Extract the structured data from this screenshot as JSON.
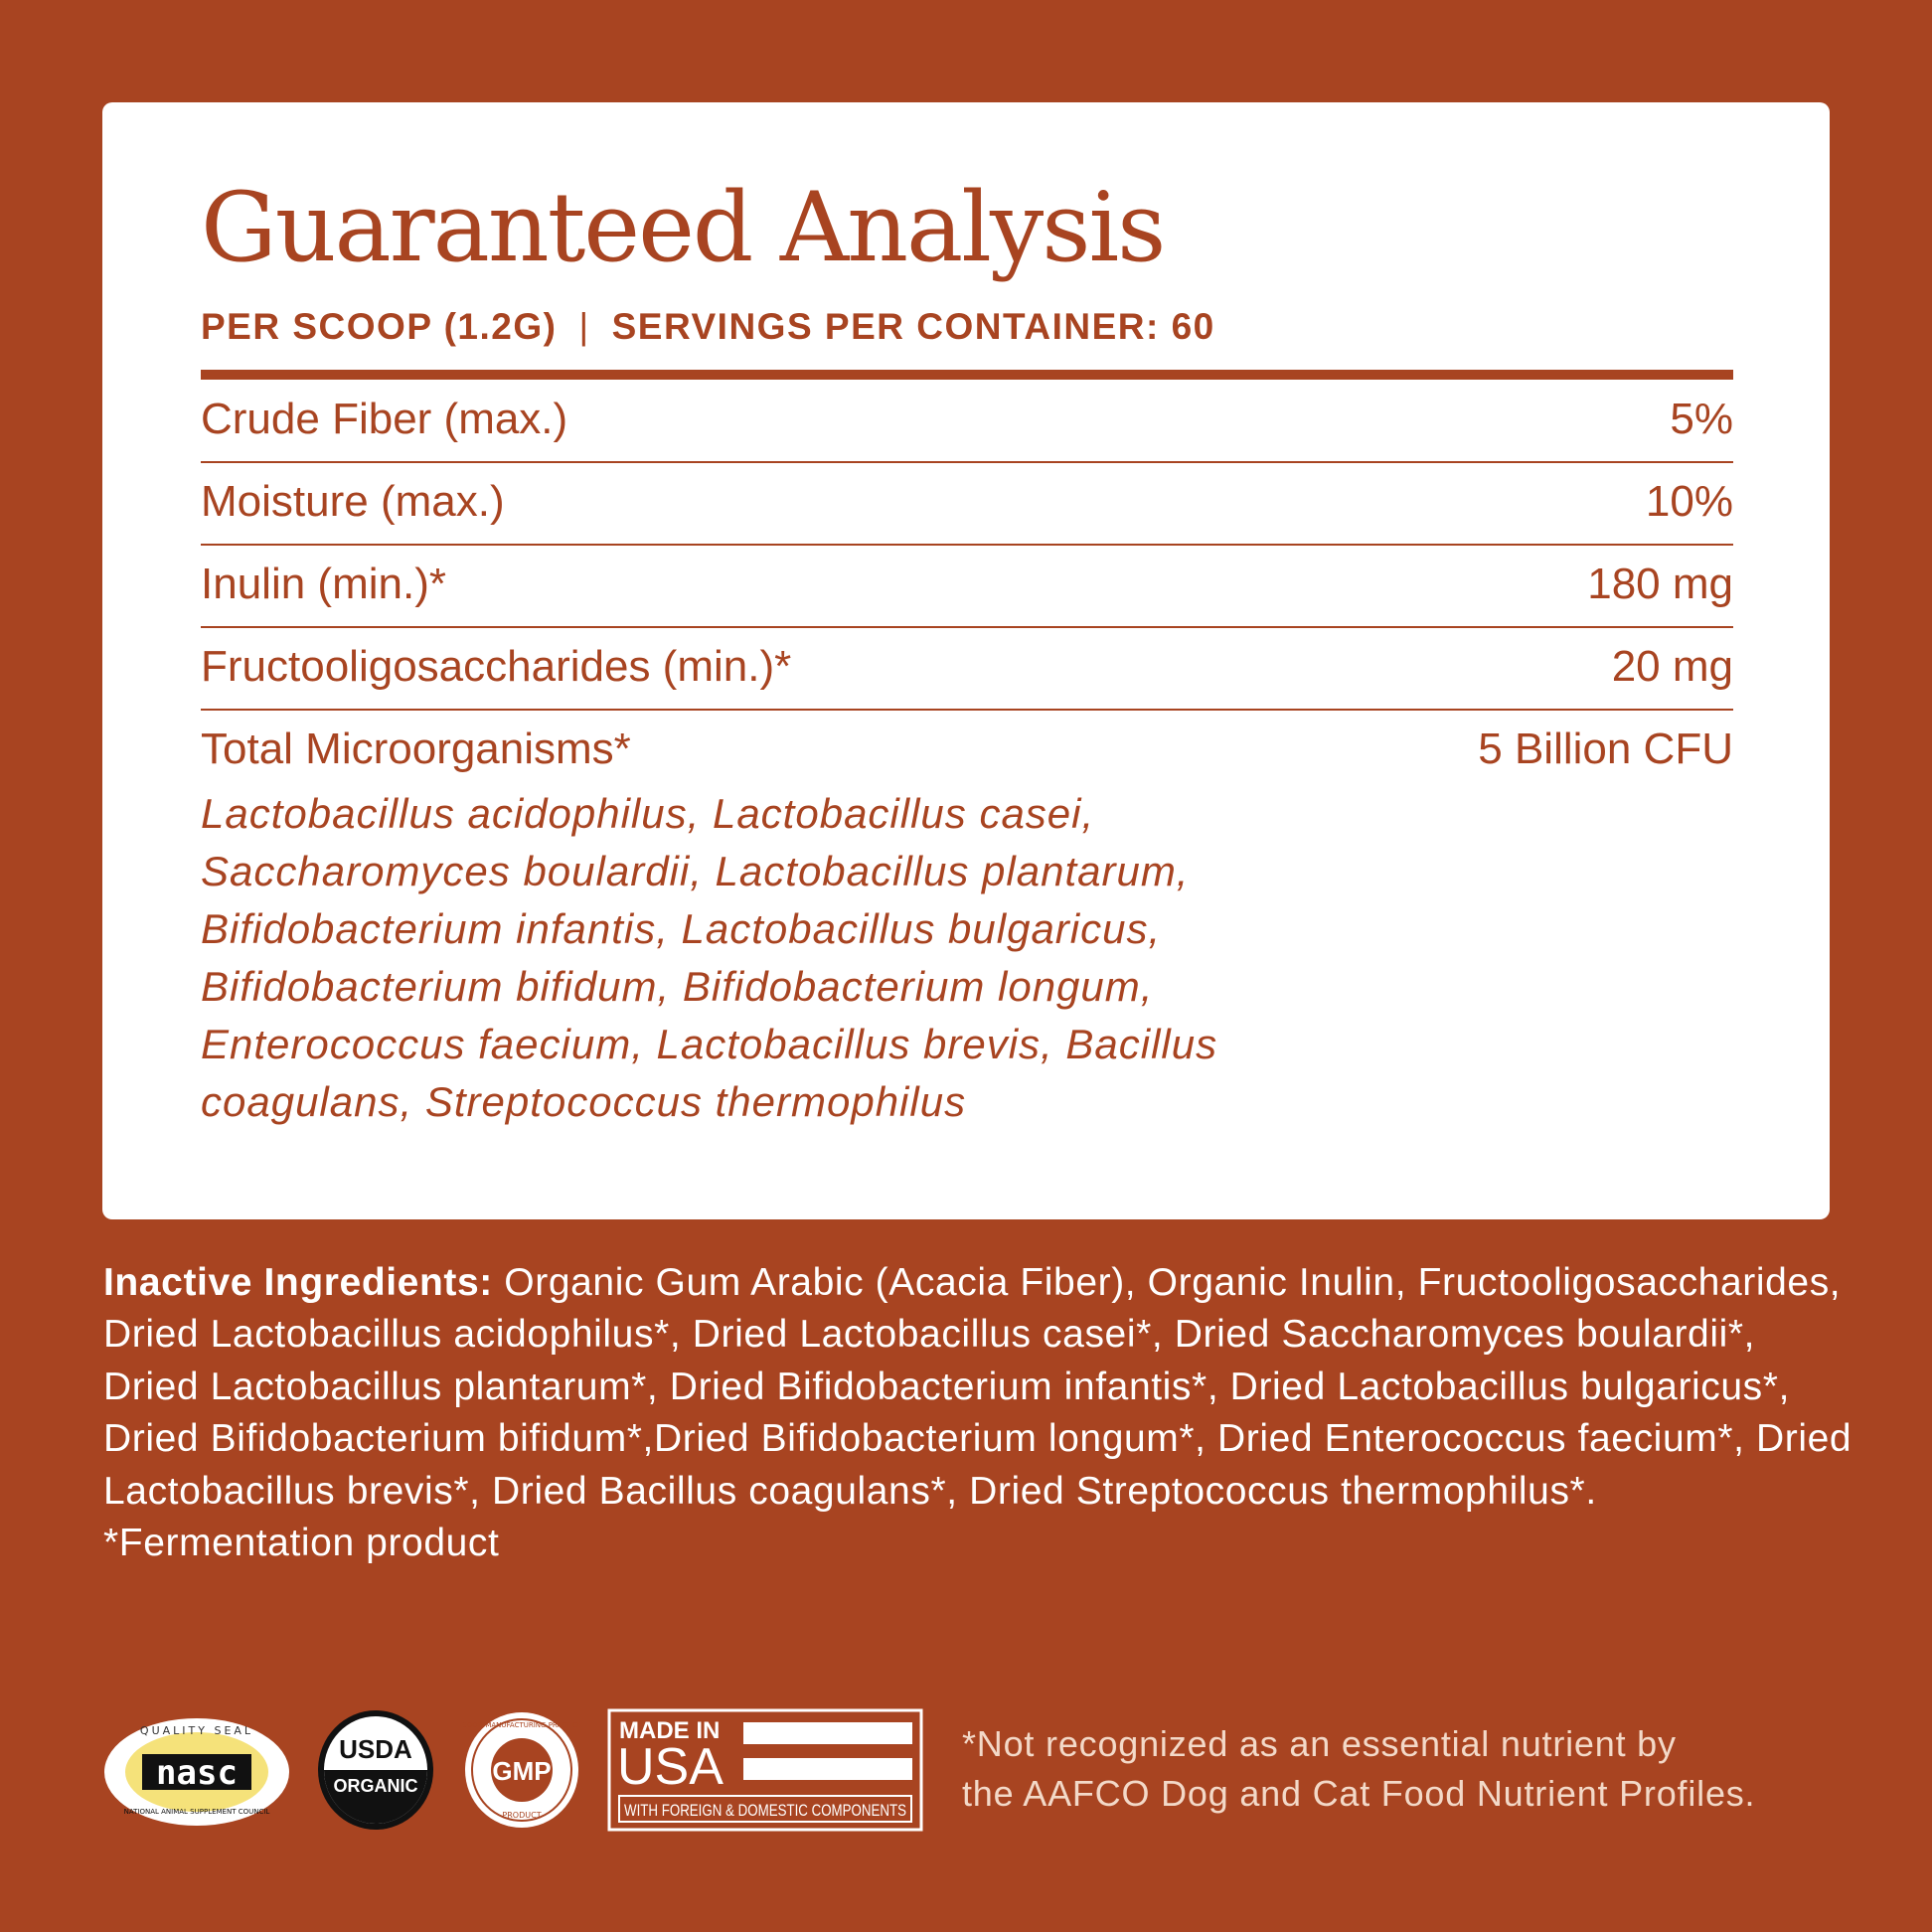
{
  "header": {
    "title": "Guaranteed Analysis",
    "per_scoop": "PER SCOOP (1.2G)",
    "separator": "|",
    "servings": "SERVINGS PER CONTAINER: 60"
  },
  "rows": [
    {
      "label": "Crude Fiber (max.)",
      "value": "5%"
    },
    {
      "label": "Moisture (max.)",
      "value": "10%"
    },
    {
      "label": "Inulin (min.)*",
      "value": "180 mg"
    },
    {
      "label": "Fructooligosaccharides (min.)*",
      "value": "20 mg"
    },
    {
      "label": "Total Microorganisms*",
      "value": "5 Billion CFU"
    }
  ],
  "species": "Lactobacillus acidophilus, Lactobacillus casei, Saccharomyces boulardii, Lactobacillus plantarum, Bifidobacterium infantis, Lactobacillus bulgaricus, Bifidobacterium bifidum, Bifidobacterium longum, Enterococcus faecium, Lactobacillus brevis, Bacillus coagulans, Streptococcus thermophilus",
  "inactive": {
    "label": "Inactive Ingredients:",
    "text": " Organic Gum Arabic (Acacia Fiber), Organic Inulin, Fructooligosaccharides, Dried Lactobacillus acidophilus*, Dried Lactobacillus casei*, Dried Saccharomyces boulardii*, Dried Lactobacillus plantarum*, Dried Bifidobacterium infantis*, Dried Lactobacillus bulgaricus*, Dried Bifidobacterium bifidum*,Dried Bifidobacterium longum*, Dried Enterococcus faecium*, Dried Lactobacillus brevis*, Dried Bacillus coagulans*, Dried Streptococcus thermophilus*.",
    "footnote": "*Fermentation product"
  },
  "logos": {
    "nasc": {
      "top": "QUALITY SEAL",
      "main": "nasc",
      "bottom": "NATIONAL ANIMAL SUPPLEMENT COUNCIL"
    },
    "usda": {
      "top": "USDA",
      "bottom": "ORGANIC"
    },
    "gmp": {
      "ring": "GOOD MANUFACTURING PRACTICE",
      "bottom": "PRODUCT",
      "main": "GMP"
    },
    "usa": {
      "line1": "MADE IN",
      "line2": "USA",
      "line3": "WITH FOREIGN & DOMESTIC COMPONENTS"
    }
  },
  "footnote": {
    "line1": "*Not recognized as an essential nutrient by",
    "line2": "the AAFCO Dog and Cat Food Nutrient Profiles."
  },
  "colors": {
    "background": "#A84421",
    "card": "#FFFFFF",
    "nasc_yellow": "#F5E27A"
  }
}
